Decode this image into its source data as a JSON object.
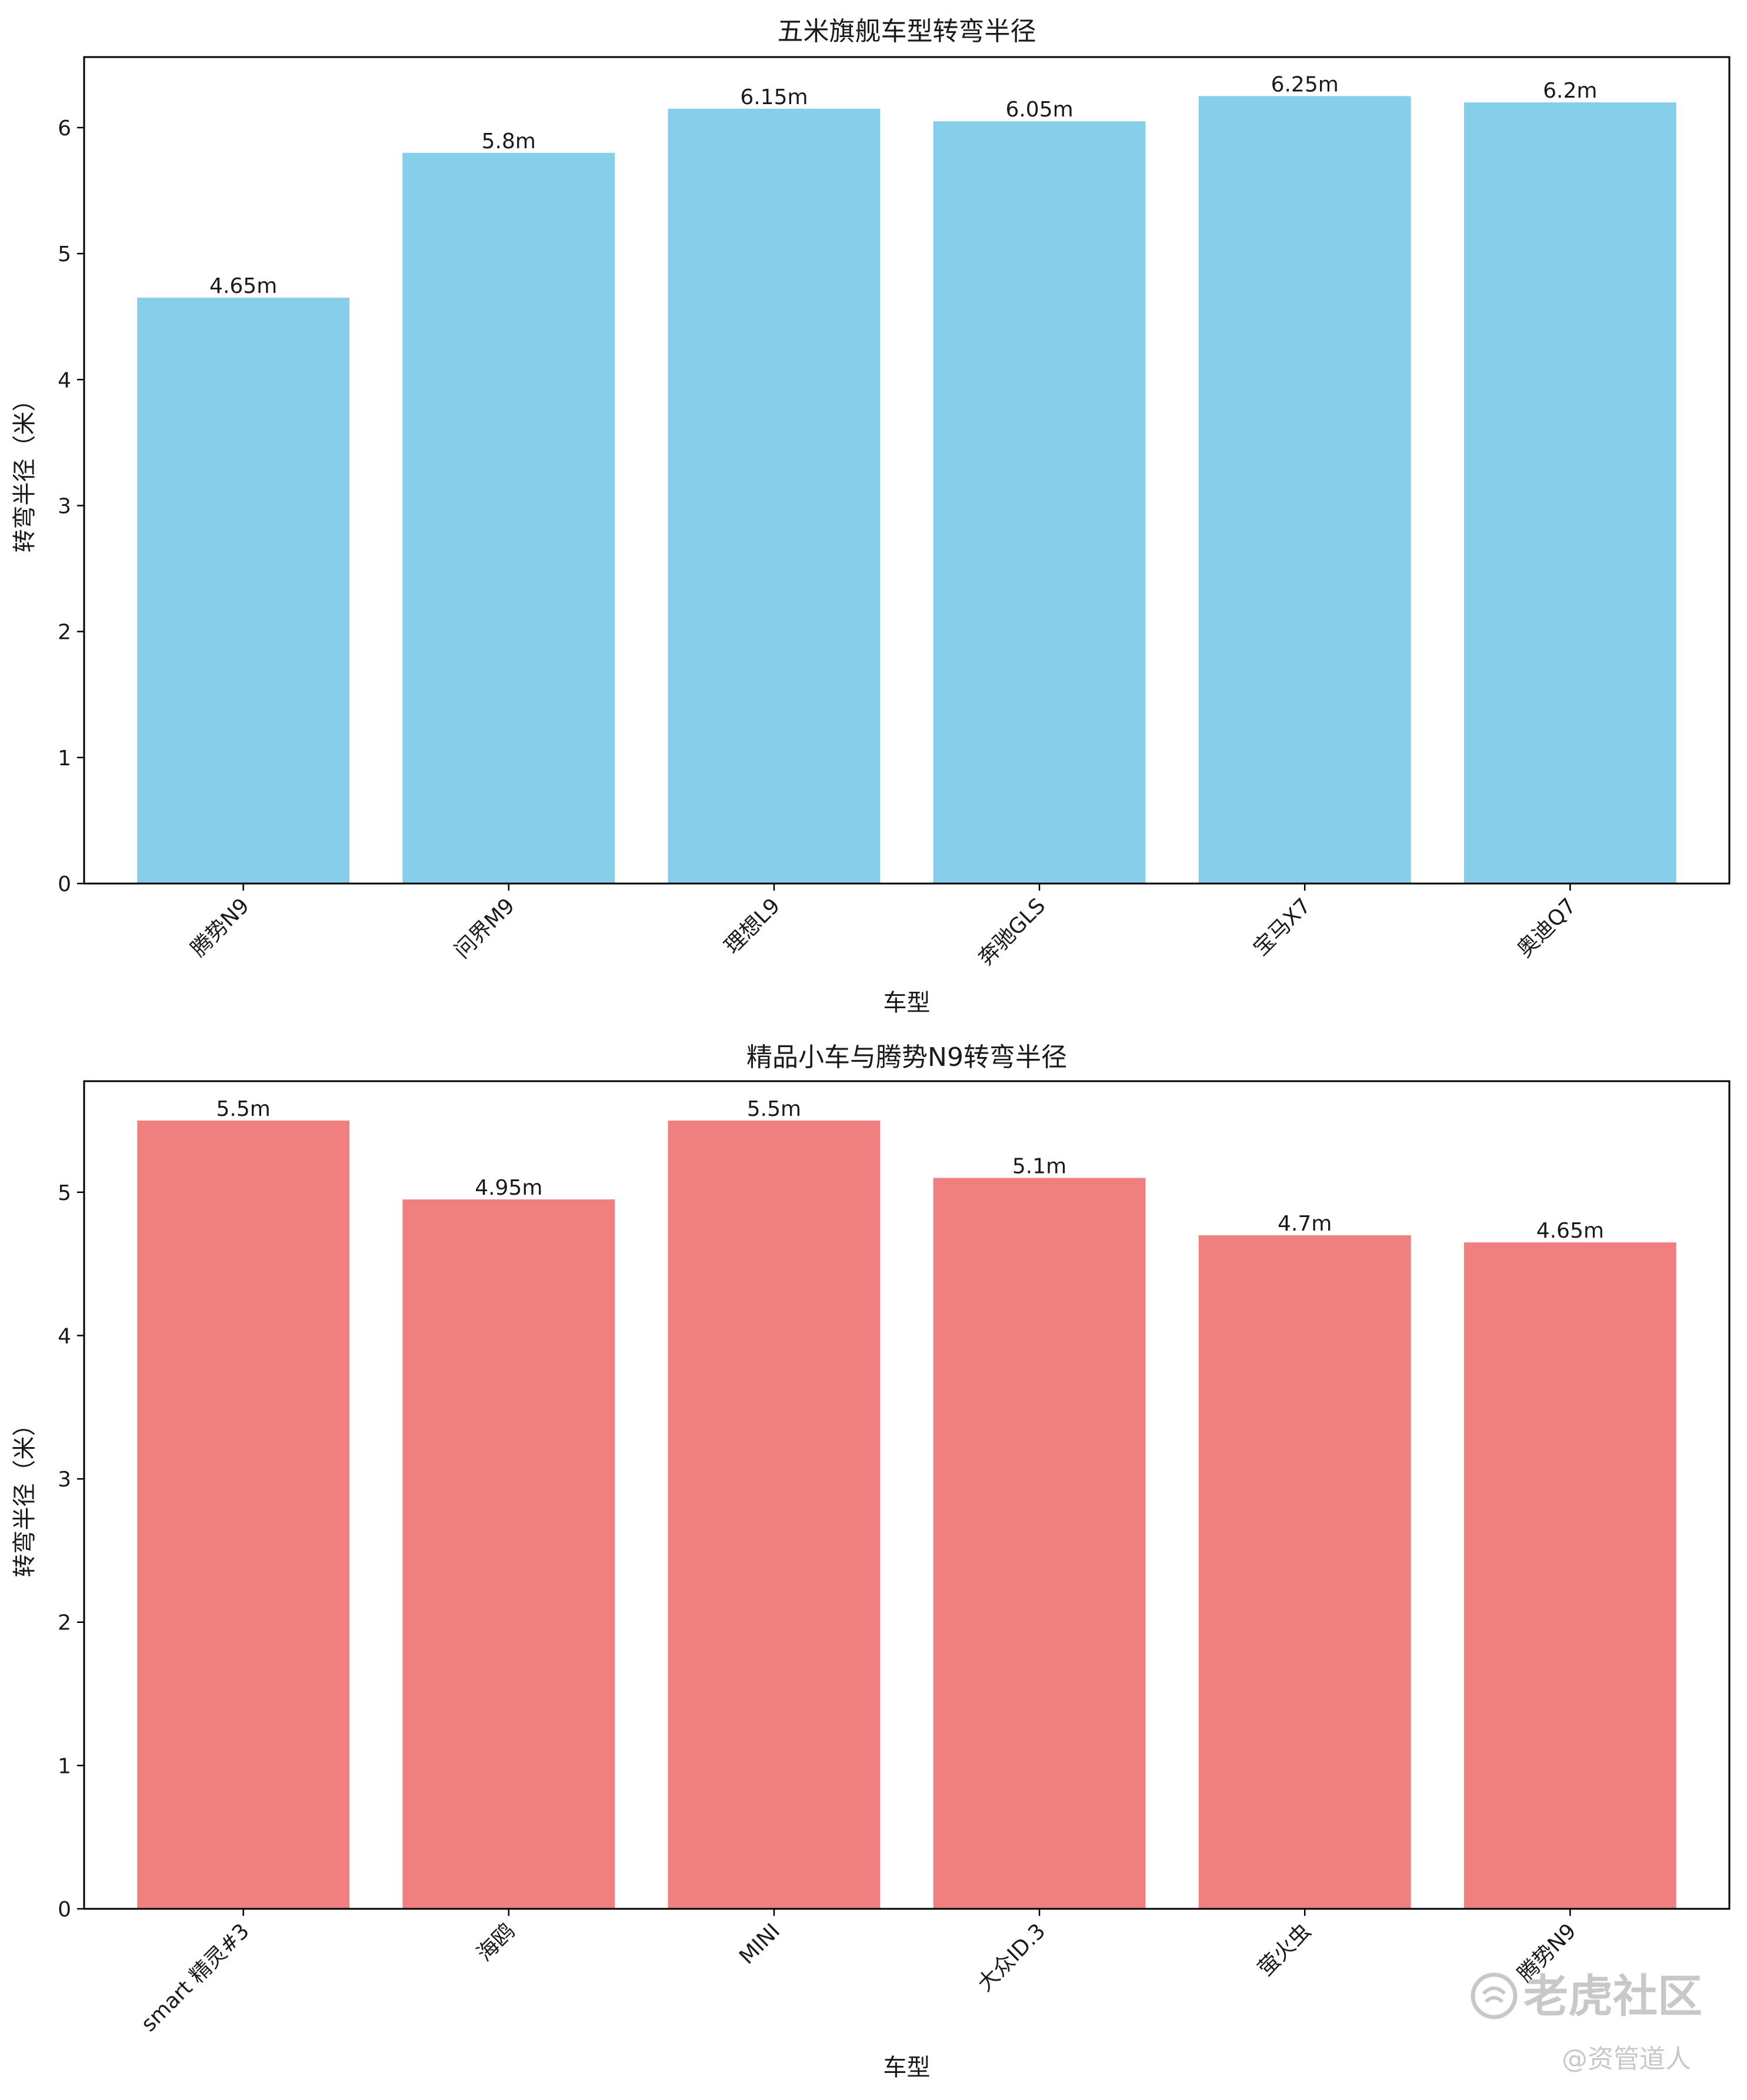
{
  "chart_data": [
    {
      "type": "bar",
      "title": "五米旗舰车型转弯半径",
      "xlabel": "车型",
      "ylabel": "转弯半径（米）",
      "categories": [
        "腾势N9",
        "问界M9",
        "理想L9",
        "奔驰GLS",
        "宝马X7",
        "奥迪Q7"
      ],
      "values": [
        4.65,
        5.8,
        6.15,
        6.05,
        6.25,
        6.2
      ],
      "data_labels": [
        "4.65m",
        "5.8m",
        "6.15m",
        "6.05m",
        "6.25m",
        "6.2m"
      ],
      "ylim": [
        0,
        6.56
      ],
      "yticks": [
        0,
        1,
        2,
        3,
        4,
        5,
        6
      ],
      "bar_color": "#87CEEB",
      "grid": false
    },
    {
      "type": "bar",
      "title": "精品小车与腾势N9转弯半径",
      "xlabel": "车型",
      "ylabel": "转弯半径（米）",
      "categories": [
        "smart 精灵#3",
        "海鸥",
        "MINI",
        "大众ID.3",
        "萤火虫",
        "腾势N9"
      ],
      "values": [
        5.5,
        4.95,
        5.5,
        5.1,
        4.7,
        4.65
      ],
      "data_labels": [
        "5.5m",
        "4.95m",
        "5.5m",
        "5.1m",
        "4.7m",
        "4.65m"
      ],
      "ylim": [
        0,
        5.775
      ],
      "yticks": [
        0,
        1,
        2,
        3,
        4,
        5
      ],
      "bar_color": "#F08080",
      "grid": false
    }
  ],
  "watermark": {
    "brand": "老虎社区",
    "handle": "@资管道人",
    "icon": "tiger-logo-icon"
  }
}
